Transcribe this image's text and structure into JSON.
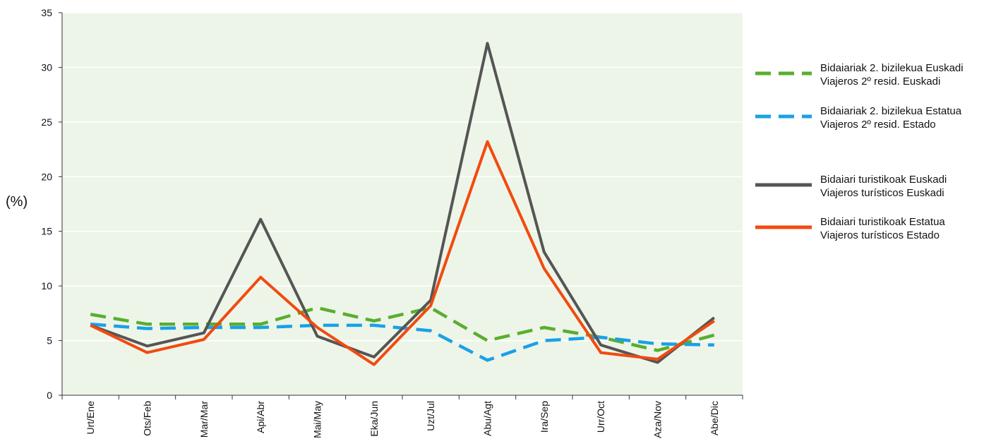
{
  "chart_data": {
    "type": "line",
    "ylabel": "(%)",
    "ylim": [
      0,
      35
    ],
    "yticks": [
      0,
      5,
      10,
      15,
      20,
      25,
      30,
      35
    ],
    "grid": true,
    "legend_position": "right",
    "categories": [
      "Urt/Ene",
      "Ots/Feb",
      "Mar/Mar",
      "Api/Abr",
      "Mai/May",
      "Eka/Jun",
      "Uzt/Jul",
      "Abu/Agt",
      "Ira/Sep",
      "Urr/Oct",
      "Aza/Nov",
      "Abe/Dic"
    ],
    "series": [
      {
        "name": "Bidaiariak 2. bizilekua Euskadi",
        "name2": "Viajeros 2º resid. Euskadi",
        "color": "#5aae2e",
        "style": "dashed",
        "values": [
          7.4,
          6.5,
          6.5,
          6.5,
          8.0,
          6.8,
          8.0,
          5.0,
          6.2,
          5.3,
          4.1,
          5.5
        ]
      },
      {
        "name": "Bidaiariak 2. bizilekua Estatua",
        "name2": "Viajeros 2º resid. Estado",
        "color": "#1aa0e8",
        "style": "dashed",
        "values": [
          6.5,
          6.1,
          6.2,
          6.2,
          6.4,
          6.4,
          5.9,
          3.2,
          5.0,
          5.3,
          4.7,
          4.6
        ]
      },
      {
        "name": "Bidaiari turistikoak Euskadi",
        "name2": "Viajeros turísticos Euskadi",
        "color": "#555555",
        "style": "solid",
        "values": [
          6.4,
          4.5,
          5.7,
          16.1,
          5.4,
          3.5,
          8.7,
          32.2,
          13.1,
          4.6,
          3.0,
          7.1
        ]
      },
      {
        "name": "Bidaiari turistikoak Estatua",
        "name2": "Viajeros turísticos Estado",
        "color": "#f24a0f",
        "style": "solid",
        "values": [
          6.4,
          3.9,
          5.1,
          10.8,
          6.2,
          2.8,
          8.2,
          23.2,
          11.6,
          3.9,
          3.3,
          6.8
        ]
      }
    ]
  }
}
